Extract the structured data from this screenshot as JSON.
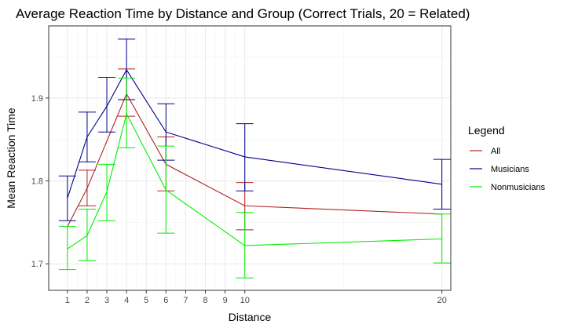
{
  "chart_data": {
    "type": "line",
    "title": "Average Reaction Time by Distance and Group (Correct Trials, 20 = Related)",
    "xlabel": "Distance",
    "ylabel": "Mean Reaction Time",
    "x_ticks": [
      1,
      2,
      3,
      4,
      5,
      6,
      7,
      8,
      9,
      10,
      20
    ],
    "x_tick_labels": [
      "1",
      "2",
      "3",
      "4",
      "5",
      "6",
      "7",
      "8",
      "9",
      "10",
      "20"
    ],
    "y_ticks": [
      1.7,
      1.8,
      1.9
    ],
    "y_tick_labels": [
      "1.7",
      "1.8",
      "1.9"
    ],
    "xlim": [
      0.05,
      20.45
    ],
    "ylim": [
      1.668,
      1.987
    ],
    "grid": true,
    "legend": {
      "title": "Legend",
      "position": "right"
    },
    "series": [
      {
        "name": "All",
        "color": "#b22222",
        "x": [
          1,
          2,
          4,
          6,
          10,
          20
        ],
        "y": [
          1.745,
          1.791,
          1.905,
          1.82,
          1.77,
          1.76
        ],
        "err_low": [
          1.745,
          1.77,
          1.878,
          1.788,
          1.741,
          1.76
        ],
        "err_high": [
          1.745,
          1.813,
          1.935,
          1.853,
          1.798,
          1.76
        ]
      },
      {
        "name": "Musicians",
        "color": "#00008b",
        "x": [
          1,
          2,
          3,
          4,
          6,
          10,
          20
        ],
        "y": [
          1.779,
          1.853,
          1.89,
          1.934,
          1.859,
          1.829,
          1.796
        ],
        "err_low": [
          1.752,
          1.823,
          1.859,
          1.898,
          1.825,
          1.788,
          1.766
        ],
        "err_high": [
          1.806,
          1.883,
          1.925,
          1.971,
          1.893,
          1.869,
          1.826
        ]
      },
      {
        "name": "Nonmusicians",
        "color": "#00ee00",
        "x": [
          1,
          2,
          3,
          4,
          6,
          10,
          20
        ],
        "y": [
          1.718,
          1.734,
          1.787,
          1.881,
          1.789,
          1.722,
          1.73
        ],
        "err_low": [
          1.693,
          1.704,
          1.752,
          1.84,
          1.737,
          1.683,
          1.701
        ],
        "err_high": [
          1.745,
          1.766,
          1.82,
          1.924,
          1.842,
          1.762,
          1.76
        ]
      }
    ]
  }
}
